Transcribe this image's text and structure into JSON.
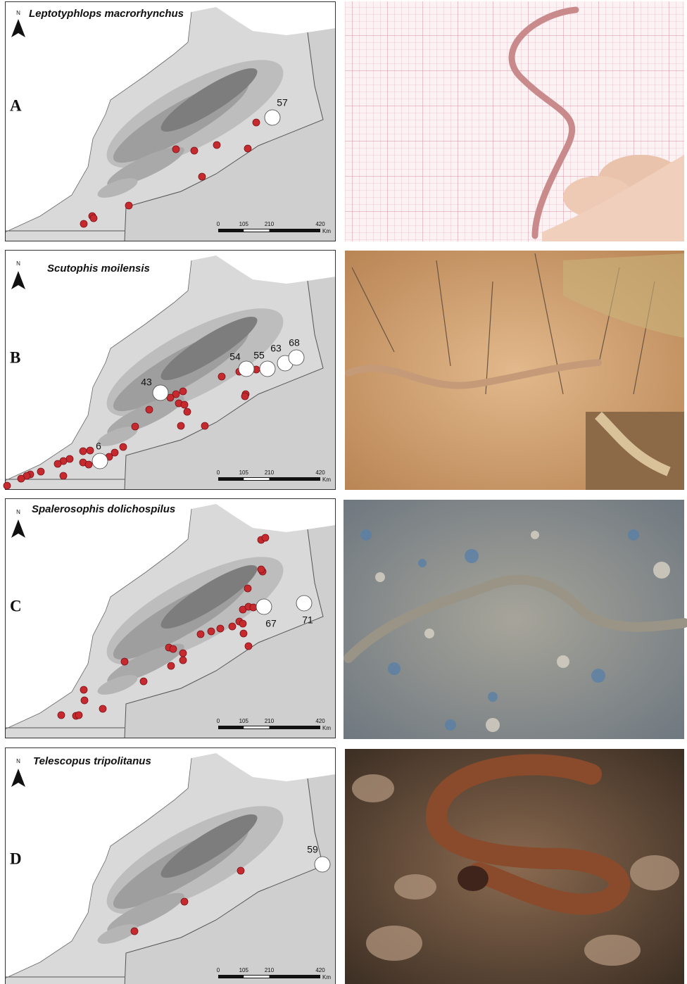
{
  "north": "N",
  "scale": {
    "ticks": [
      0,
      105,
      210,
      420
    ],
    "unit": "Km"
  },
  "panels": [
    {
      "label": "A",
      "species": "Leptotyphlops macrorhynchus",
      "sites": [
        57
      ]
    },
    {
      "label": "B",
      "species": "Scutophis moilensis",
      "sites": [
        54,
        55,
        63,
        68,
        43,
        6
      ]
    },
    {
      "label": "C",
      "species": "Spalerosophis dolichospilus",
      "sites": [
        67,
        71
      ]
    },
    {
      "label": "D",
      "species": "Telescopus tripolitanus",
      "sites": [
        59
      ]
    }
  ]
}
